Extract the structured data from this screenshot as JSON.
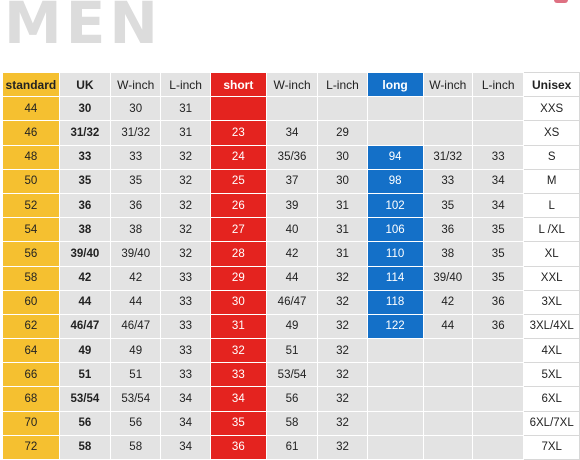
{
  "page": {
    "title": "MEN"
  },
  "columns": [
    "standard",
    "UK",
    "W-inch",
    "L-inch",
    "short",
    "W-inch",
    "L-inch",
    "long",
    "W-inch",
    "L-inch",
    "Unisex"
  ],
  "rows": [
    [
      "44",
      "30",
      "30",
      "31",
      "",
      "",
      "",
      "",
      "",
      "",
      "XXS"
    ],
    [
      "46",
      "31/32",
      "31/32",
      "31",
      "23",
      "34",
      "29",
      "",
      "",
      "",
      "XS"
    ],
    [
      "48",
      "33",
      "33",
      "32",
      "24",
      "35/36",
      "30",
      "94",
      "31/32",
      "33",
      "S"
    ],
    [
      "50",
      "35",
      "35",
      "32",
      "25",
      "37",
      "30",
      "98",
      "33",
      "34",
      "M"
    ],
    [
      "52",
      "36",
      "36",
      "32",
      "26",
      "39",
      "31",
      "102",
      "35",
      "34",
      "L"
    ],
    [
      "54",
      "38",
      "38",
      "32",
      "27",
      "40",
      "31",
      "106",
      "36",
      "35",
      "L /XL"
    ],
    [
      "56",
      "39/40",
      "39/40",
      "32",
      "28",
      "42",
      "31",
      "110",
      "38",
      "35",
      "XL"
    ],
    [
      "58",
      "42",
      "42",
      "33",
      "29",
      "44",
      "32",
      "114",
      "39/40",
      "35",
      "XXL"
    ],
    [
      "60",
      "44",
      "44",
      "33",
      "30",
      "46/47",
      "32",
      "118",
      "42",
      "36",
      "3XL"
    ],
    [
      "62",
      "46/47",
      "46/47",
      "33",
      "31",
      "49",
      "32",
      "122",
      "44",
      "36",
      "3XL/4XL"
    ],
    [
      "64",
      "49",
      "49",
      "33",
      "32",
      "51",
      "32",
      "",
      "",
      "",
      "4XL"
    ],
    [
      "66",
      "51",
      "51",
      "33",
      "33",
      "53/54",
      "32",
      "",
      "",
      "",
      "5XL"
    ],
    [
      "68",
      "53/54",
      "53/54",
      "34",
      "34",
      "56",
      "32",
      "",
      "",
      "",
      "6XL"
    ],
    [
      "70",
      "56",
      "56",
      "34",
      "35",
      "58",
      "32",
      "",
      "",
      "",
      "6XL/7XL"
    ],
    [
      "72",
      "58",
      "58",
      "34",
      "36",
      "61",
      "32",
      "",
      "",
      "",
      "7XL"
    ]
  ],
  "colors": {
    "standard": "#f5c030",
    "short": "#e4231f",
    "long": "#1470c8",
    "cell": "#e3e3e3",
    "title": "#dcdcdc"
  }
}
